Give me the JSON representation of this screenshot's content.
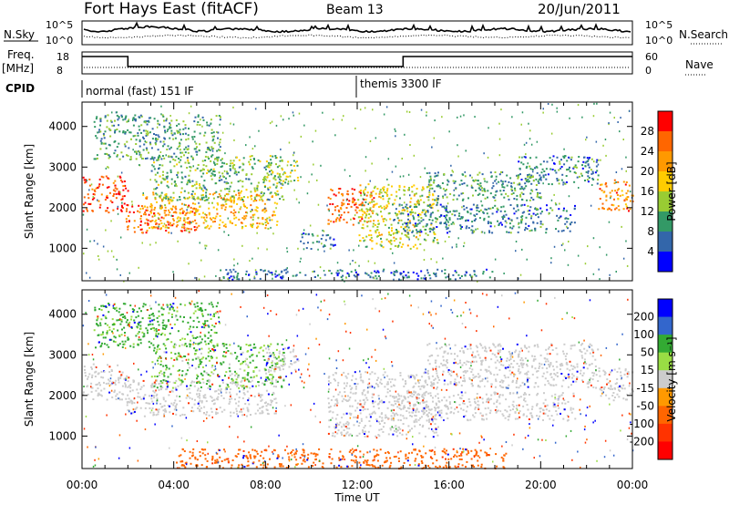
{
  "header": {
    "station": "Fort Hays East (fitACF)",
    "beam": "Beam 13",
    "date": "20/Jun/2011"
  },
  "panels": {
    "nsky": {
      "label": "N.Sky",
      "ticks": [
        "10^5",
        "10^0"
      ],
      "right_label": "N.Search",
      "right_ticks": [
        "10^5",
        "10^0"
      ]
    },
    "freq": {
      "label1": "Freq.",
      "label2": "[MHz]",
      "ticks": [
        "18",
        "8"
      ],
      "right_label": "Nave",
      "right_ticks": [
        "60",
        "0"
      ]
    },
    "cpid": {
      "label": "CPID",
      "modes": [
        "normal (fast) 151 IF",
        "themis 3300 IF"
      ]
    }
  },
  "chart_data": [
    {
      "type": "heatmap",
      "name": "power",
      "ylabel": "Slant Range [km]",
      "xlabel": "",
      "x_ticks": [
        "00:00",
        "04:00",
        "08:00",
        "12:00",
        "16:00",
        "20:00",
        "00:00"
      ],
      "y_ticks": [
        1000,
        2000,
        3000,
        4000
      ],
      "ylim": [
        200,
        4600
      ],
      "xlim_hours": [
        0,
        24
      ],
      "colorbar": {
        "label": "Power [dB]",
        "ticks": [
          "28",
          "24",
          "20",
          "16",
          "12",
          "8",
          "4"
        ],
        "colors": [
          "#ff0000",
          "#ff6600",
          "#ff9900",
          "#ffcc00",
          "#99cc33",
          "#339966",
          "#3366aa",
          "#0000ff"
        ]
      },
      "bands": [
        {
          "x0": 0.0,
          "x1": 2.0,
          "y0": 1900,
          "y1": 2800,
          "level": 26
        },
        {
          "x0": 1.9,
          "x1": 5.0,
          "y0": 1400,
          "y1": 2100,
          "level": 24
        },
        {
          "x0": 2.5,
          "x1": 8.5,
          "y0": 1500,
          "y1": 2400,
          "level": 18
        },
        {
          "x0": 3.0,
          "x1": 8.8,
          "y0": 2200,
          "y1": 3300,
          "level": 10
        },
        {
          "x0": 0.5,
          "x1": 6.0,
          "y0": 3200,
          "y1": 4300,
          "level": 8
        },
        {
          "x0": 8.0,
          "x1": 9.4,
          "y0": 2600,
          "y1": 3200,
          "level": 12
        },
        {
          "x0": 10.7,
          "x1": 12.7,
          "y0": 1600,
          "y1": 2500,
          "level": 24
        },
        {
          "x0": 12.0,
          "x1": 15.5,
          "y0": 1000,
          "y1": 2600,
          "level": 14
        },
        {
          "x0": 13.5,
          "x1": 21.5,
          "y0": 1400,
          "y1": 2100,
          "level": 6
        },
        {
          "x0": 15.0,
          "x1": 20.0,
          "y0": 2200,
          "y1": 2900,
          "level": 8
        },
        {
          "x0": 19.0,
          "x1": 22.5,
          "y0": 2600,
          "y1": 3300,
          "level": 6
        },
        {
          "x0": 22.5,
          "x1": 24.0,
          "y0": 1900,
          "y1": 2700,
          "level": 22
        },
        {
          "x0": 6.0,
          "x1": 18.0,
          "y0": 250,
          "y1": 500,
          "level": 5
        },
        {
          "x0": 9.5,
          "x1": 11.0,
          "y0": 1000,
          "y1": 1400,
          "level": 6
        }
      ]
    },
    {
      "type": "heatmap",
      "name": "velocity",
      "ylabel": "Slant Range [km]",
      "xlabel": "Time UT",
      "x_ticks": [
        "00:00",
        "04:00",
        "08:00",
        "12:00",
        "16:00",
        "20:00",
        "00:00"
      ],
      "y_ticks": [
        1000,
        2000,
        3000,
        4000
      ],
      "ylim": [
        200,
        4600
      ],
      "xlim_hours": [
        0,
        24
      ],
      "colorbar": {
        "label": "Velocity [m s⁻¹]",
        "ticks": [
          "200",
          "100",
          "50",
          "15",
          "-15",
          "-50",
          "-100",
          "-200"
        ],
        "colors": [
          "#0000ff",
          "#3366cc",
          "#33aa33",
          "#99dd44",
          "#cccccc",
          "#ff9900",
          "#ff6600",
          "#ff3300",
          "#ff0000"
        ]
      },
      "bands": [
        {
          "x0": 0.0,
          "x1": 2.0,
          "y0": 1900,
          "y1": 2800,
          "level": 0
        },
        {
          "x0": 1.9,
          "x1": 8.5,
          "y0": 1500,
          "y1": 2400,
          "level": 0
        },
        {
          "x0": 3.0,
          "x1": 8.8,
          "y0": 2200,
          "y1": 3300,
          "level": 30
        },
        {
          "x0": 0.5,
          "x1": 6.0,
          "y0": 3200,
          "y1": 4300,
          "level": 40
        },
        {
          "x0": 8.0,
          "x1": 9.4,
          "y0": 2600,
          "y1": 3200,
          "level": 0
        },
        {
          "x0": 10.7,
          "x1": 15.5,
          "y0": 1000,
          "y1": 2600,
          "level": 0
        },
        {
          "x0": 13.5,
          "x1": 21.5,
          "y0": 1400,
          "y1": 2100,
          "level": 0
        },
        {
          "x0": 15.0,
          "x1": 22.5,
          "y0": 2200,
          "y1": 3300,
          "level": 0
        },
        {
          "x0": 22.5,
          "x1": 24.0,
          "y0": 1900,
          "y1": 2700,
          "level": 0
        },
        {
          "x0": 4.0,
          "x1": 18.5,
          "y0": 220,
          "y1": 700,
          "level": -80
        }
      ]
    }
  ]
}
